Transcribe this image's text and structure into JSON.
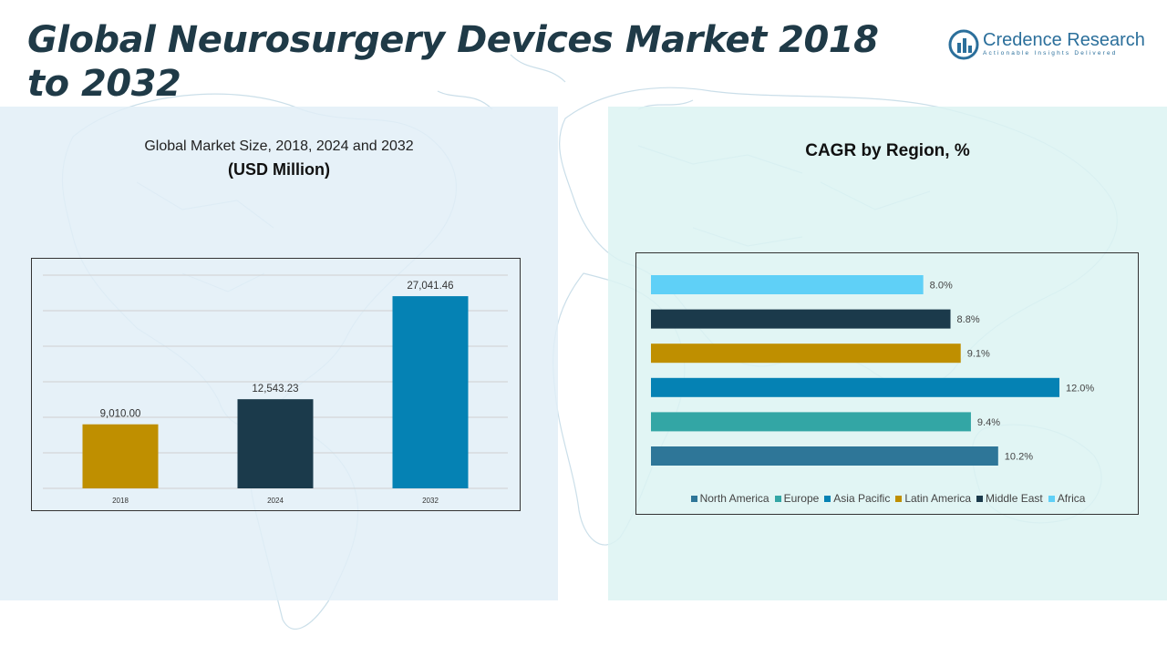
{
  "title": "Global Neurosurgery Devices Market 2018 to 2032",
  "logo": {
    "name": "Credence Research",
    "tagline": "Actionable Insights Delivered"
  },
  "icons": {
    "logo": "credence-logo-icon",
    "background": "world-map"
  },
  "left_panel": {
    "title": "Global Market Size, 2018, 2024 and 2032",
    "subtitle": "(USD Million)"
  },
  "right_panel": {
    "title": "CAGR by Region, %"
  },
  "chart_data": [
    {
      "type": "bar",
      "title": "Global Market Size, 2018, 2024 and 2032",
      "subtitle": "(USD Million)",
      "categories": [
        "2018",
        "2024",
        "2032"
      ],
      "values": [
        9010.0,
        12543.23,
        27041.46
      ],
      "value_labels": [
        "9,010.00",
        "12,543.23",
        "27,041.46"
      ],
      "colors": [
        "#bf8f00",
        "#1b3a4b",
        "#0582b4"
      ],
      "ylim": [
        0,
        30000
      ],
      "grid": true
    },
    {
      "type": "bar",
      "orientation": "horizontal",
      "title": "CAGR by Region, %",
      "categories": [
        "North America",
        "Europe",
        "Asia Pacific",
        "Latin America",
        "Middle East",
        "Africa"
      ],
      "values": [
        10.2,
        9.4,
        12.0,
        9.1,
        8.8,
        8.0
      ],
      "value_labels": [
        "10.2%",
        "9.4%",
        "12.0%",
        "9.1%",
        "8.8%",
        "8.0%"
      ],
      "colors": [
        "#2e7698",
        "#33a6a5",
        "#0582b4",
        "#bf8f00",
        "#1b3a4b",
        "#5fd0f7"
      ],
      "xlim": [
        0,
        13
      ],
      "legend": "bottom"
    }
  ]
}
